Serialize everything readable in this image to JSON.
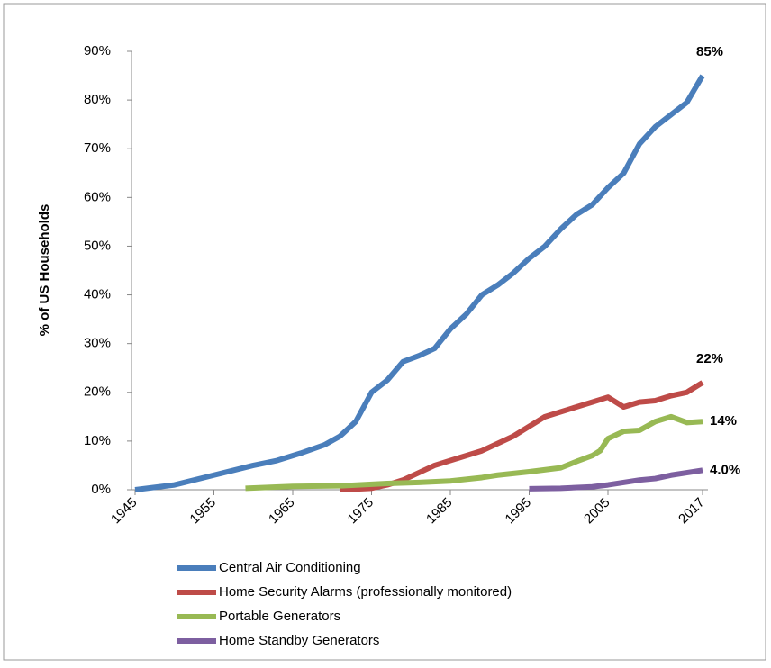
{
  "chart_data": {
    "type": "line",
    "ylabel": "% of US Households",
    "xlim": [
      1945,
      2017
    ],
    "xticks": [
      1945,
      1955,
      1965,
      1975,
      1985,
      1995,
      2005,
      2017
    ],
    "ylim": [
      0,
      90
    ],
    "yticks": [
      {
        "value": 0,
        "label": "0%"
      },
      {
        "value": 10,
        "label": "10%"
      },
      {
        "value": 20,
        "label": "20%"
      },
      {
        "value": 30,
        "label": "30%"
      },
      {
        "value": 40,
        "label": "40%"
      },
      {
        "value": 50,
        "label": "50%"
      },
      {
        "value": 60,
        "label": "60%"
      },
      {
        "value": 70,
        "label": "70%"
      },
      {
        "value": 80,
        "label": "80%"
      },
      {
        "value": 90,
        "label": "90%"
      }
    ],
    "series": [
      {
        "name": "Central Air Conditioning",
        "color": "#4a7ebb",
        "x": [
          1945,
          1950,
          1955,
          1957,
          1960,
          1963,
          1966,
          1969,
          1971,
          1973,
          1975,
          1977,
          1979,
          1981,
          1983,
          1985,
          1987,
          1989,
          1991,
          1993,
          1995,
          1997,
          1999,
          2001,
          2003,
          2005,
          2007,
          2009,
          2011,
          2013,
          2015,
          2017
        ],
        "values": [
          0,
          1,
          3,
          3.8,
          5,
          6,
          7.5,
          9.2,
          11,
          14,
          20,
          22.5,
          26.3,
          27.5,
          29,
          33,
          36,
          40,
          42,
          44.5,
          47.5,
          50,
          53.5,
          56.5,
          58.5,
          62,
          65,
          71,
          74.5,
          77,
          79.5,
          85
        ],
        "value_labels": [
          null,
          null,
          null,
          null,
          null,
          null,
          null,
          null,
          null,
          null,
          null,
          null,
          null,
          null,
          null,
          null,
          null,
          null,
          null,
          null,
          null,
          null,
          null,
          null,
          null,
          null,
          null,
          null,
          null,
          null,
          null,
          "85%"
        ]
      },
      {
        "name": "Home Security Alarms (professionally monitored)",
        "color": "#be4b48",
        "x": [
          1971,
          1975,
          1977,
          1979,
          1983,
          1987,
          1989,
          1993,
          1997,
          2001,
          2003,
          2005,
          2007,
          2009,
          2011,
          2013,
          2015,
          2017
        ],
        "values": [
          0,
          0.3,
          1,
          2,
          5,
          7,
          8,
          11,
          15,
          17,
          18,
          19,
          17,
          18,
          18.3,
          19.3,
          20,
          22
        ],
        "value_labels": [
          null,
          null,
          null,
          null,
          null,
          null,
          null,
          null,
          null,
          null,
          null,
          null,
          null,
          null,
          null,
          null,
          null,
          "22%"
        ]
      },
      {
        "name": "Portable Generators",
        "color": "#98b954",
        "x": [
          1959,
          1965,
          1971,
          1977,
          1981,
          1985,
          1989,
          1991,
          1995,
          1999,
          2001,
          2003,
          2004,
          2005,
          2007,
          2009,
          2011,
          2013,
          2015,
          2017
        ],
        "values": [
          0.3,
          0.7,
          0.8,
          1.3,
          1.5,
          1.8,
          2.5,
          3,
          3.7,
          4.5,
          5.8,
          7,
          8,
          10.5,
          12,
          12.2,
          14,
          15,
          13.8,
          14
        ],
        "value_labels": [
          null,
          null,
          null,
          null,
          null,
          null,
          null,
          null,
          null,
          null,
          null,
          null,
          null,
          null,
          null,
          null,
          null,
          null,
          null,
          "14%"
        ]
      },
      {
        "name": "Home Standby Generators",
        "color": "#7d5fa0",
        "x": [
          1995,
          1999,
          2003,
          2005,
          2009,
          2011,
          2013,
          2015,
          2017
        ],
        "values": [
          0.2,
          0.3,
          0.6,
          1,
          2,
          2.3,
          3,
          3.5,
          4.0
        ],
        "value_labels": [
          null,
          null,
          null,
          null,
          null,
          null,
          null,
          null,
          "4.0%"
        ]
      }
    ]
  }
}
